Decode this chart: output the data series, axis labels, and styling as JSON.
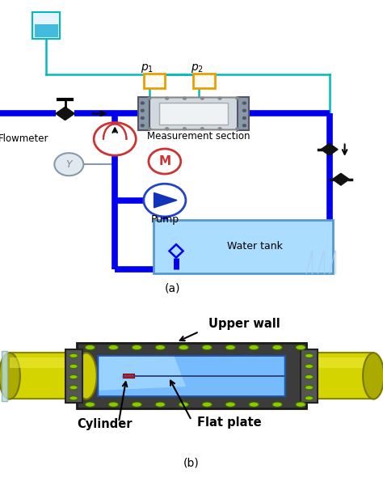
{
  "fig_width": 4.74,
  "fig_height": 5.96,
  "dpi": 100,
  "bg_color": "#ffffff",
  "label_a": "(a)",
  "label_b": "(b)",
  "pipe_blue": "#0000ee",
  "teal_line": "#00bbbb",
  "orange_box": "#e8a000",
  "tank_fill": "#aaddff",
  "measurement_section_label": "Measurement section",
  "flowmeter_label": "Flowmeter",
  "pump_label": "Pump",
  "water_tank_label": "Water tank",
  "upper_wall_label": "Upper wall",
  "cylinder_label": "Cylinder",
  "flat_plate_label": "Flat plate"
}
